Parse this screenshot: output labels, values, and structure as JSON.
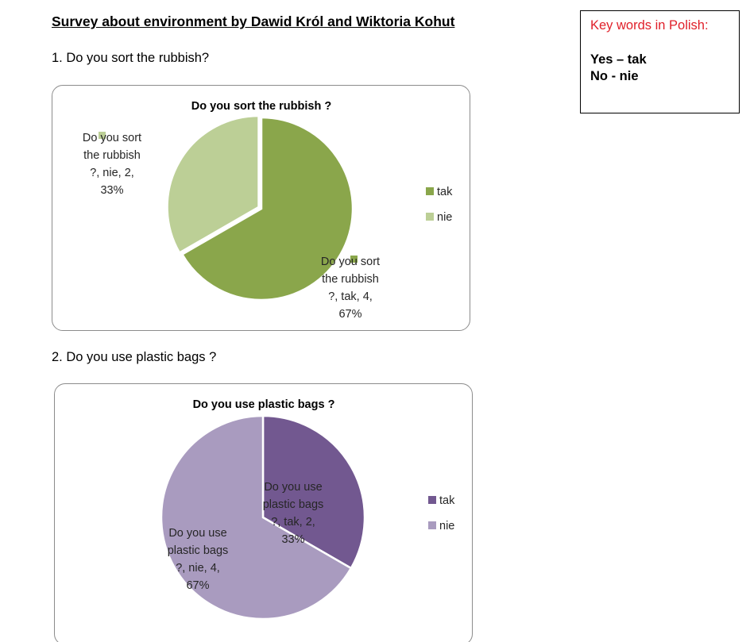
{
  "document": {
    "title": "Survey about environment by Dawid Król and Wiktoria Kohut",
    "questions": [
      "1. Do you sort the rubbish?",
      "2. Do you use plastic bags ?"
    ]
  },
  "key_words": {
    "title": "Key words in Polish:",
    "lines": [
      "Yes – tak",
      "No - nie"
    ]
  },
  "chart_data": [
    {
      "type": "pie",
      "title": "Do you sort the rubbish ?",
      "series_name": "Do you sort the rubbish ?",
      "categories": [
        "tak",
        "nie"
      ],
      "values": [
        4,
        2
      ],
      "percentages": [
        "67%",
        "33%"
      ],
      "colors": [
        "#8aa64b",
        "#bccf96"
      ],
      "data_labels": [
        [
          "Do you sort",
          "the rubbish",
          "?, tak, 4,",
          "67%"
        ],
        [
          "Do you sort",
          "the rubbish",
          "?, nie, 2,",
          "33%"
        ]
      ],
      "legend": "right"
    },
    {
      "type": "pie",
      "title": "Do you use plastic bags ?",
      "series_name": "Do you use plastic bags ?",
      "categories": [
        "tak",
        "nie"
      ],
      "values": [
        2,
        4
      ],
      "percentages": [
        "33%",
        "67%"
      ],
      "colors": [
        "#725890",
        "#a99bbf"
      ],
      "data_labels": [
        [
          "Do you use",
          "plastic bags",
          "?, tak, 2,",
          "33%"
        ],
        [
          "Do you use",
          "plastic bags",
          "?, nie, 4,",
          "67%"
        ]
      ],
      "legend": "right"
    }
  ]
}
